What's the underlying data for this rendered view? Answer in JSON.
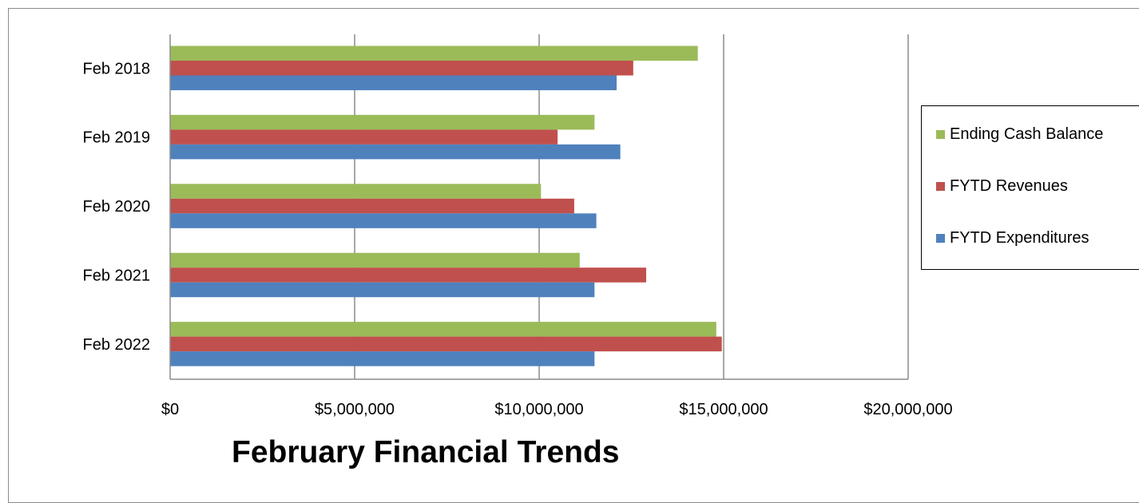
{
  "chart_data": {
    "type": "bar",
    "orientation": "horizontal",
    "title": "February Financial Trends",
    "categories": [
      "Feb 2018",
      "Feb 2019",
      "Feb 2020",
      "Feb 2021",
      "Feb 2022"
    ],
    "series": [
      {
        "name": "Ending Cash Balance",
        "color": "#9bbb59",
        "values": [
          14300000,
          11500000,
          10050000,
          11100000,
          14800000
        ]
      },
      {
        "name": "FYTD Revenues",
        "color": "#c0504d",
        "values": [
          12550000,
          10500000,
          10950000,
          12900000,
          14950000
        ]
      },
      {
        "name": "FYTD Expenditures",
        "color": "#4f81bd",
        "values": [
          12100000,
          12200000,
          11550000,
          11500000,
          11500000
        ]
      }
    ],
    "xlim": [
      0,
      20000000
    ],
    "x_ticks": [
      "$0",
      "$5,000,000",
      "$10,000,000",
      "$15,000,000",
      "$20,000,000"
    ],
    "grid": "vertical",
    "legend_position": "right"
  }
}
